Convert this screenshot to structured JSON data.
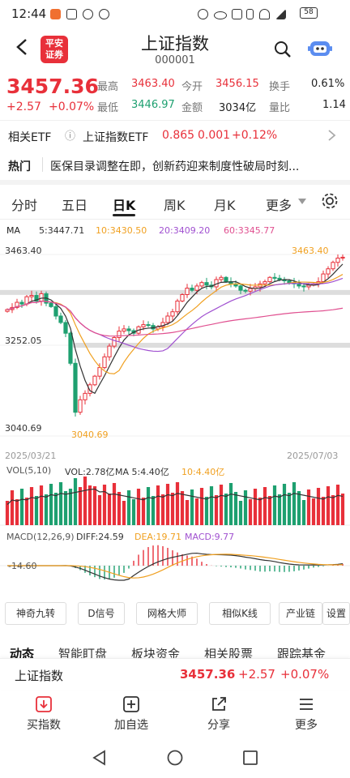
{
  "status_bar": {
    "time": "12:44",
    "battery": "58"
  },
  "header": {
    "title": "上证指数",
    "code": "000001",
    "logo_text": "平安证券"
  },
  "quote": {
    "price": "3457.36",
    "change": "+2.57",
    "change_pct": "+0.07%",
    "high_label": "最高",
    "high": "3463.40",
    "open_label": "今开",
    "open": "3456.15",
    "turnover_label": "换手",
    "turnover": "0.61%",
    "low_label": "最低",
    "low": "3446.97",
    "amount_label": "金额",
    "amount": "3034亿",
    "vol_ratio_label": "量比",
    "vol_ratio": "1.14"
  },
  "etf": {
    "label": "相关ETF",
    "name": "上证指数ETF",
    "price": "0.865",
    "change": "0.001",
    "change_pct": "+0.12%"
  },
  "hot": {
    "label": "热门",
    "text": "医保目录调整在即，创新药迎来制度性破局时刻..."
  },
  "tabs": [
    "分时",
    "五日",
    "日K",
    "周K",
    "月K",
    "更多"
  ],
  "ma_line": {
    "ma_label": "MA",
    "ma5": "5:3447.71",
    "ma10": "10:3430.50",
    "ma20": "20:3409.20",
    "ma60": "60:3345.77"
  },
  "chart_axis": {
    "y_top": "3463.40",
    "y_mid": "3252.05",
    "y_low": "3040.69",
    "low_annotation": "3040.69",
    "high_annotation": "3463.40",
    "date_start": "2025/03/21",
    "date_end": "2025/07/03"
  },
  "vol_line": {
    "label": "VOL(5,10)",
    "vol": "VOL:2.78亿",
    "ma5": "MA 5:4.40亿",
    "ma10": "10:4.40亿"
  },
  "macd_line": {
    "label": "MACD(12,26,9)",
    "diff": "DIFF:24.59",
    "dea": "DEA:19.71",
    "macd": "MACD:9.77",
    "axis_low": "-14.60"
  },
  "chips": [
    "神奇九转",
    "D信号",
    "网格大师",
    "相似K线",
    "产业链",
    "设置"
  ],
  "bottom_tabs": [
    "动态",
    "智能盯盘",
    "板块资金",
    "相关股票",
    "跟踪基金"
  ],
  "bottom_quote": {
    "name": "上证指数",
    "price": "3457.36",
    "change": "+2.57",
    "change_pct": "+0.07%"
  },
  "actions": [
    "买指数",
    "加自选",
    "分享",
    "更多"
  ],
  "colors": {
    "up": "#e8303a",
    "down": "#1ea070",
    "ma5": "#333333",
    "ma10": "#f0a020",
    "ma20": "#a050d0",
    "ma60": "#e05090"
  },
  "chart_data": {
    "type": "candlestick",
    "ylim": [
      3040.69,
      3463.4
    ],
    "high": 3463.4,
    "low": 3040.69,
    "close_series": [
      3335,
      3340,
      3352,
      3348,
      3365,
      3368,
      3355,
      3372,
      3350,
      3342,
      3320,
      3305,
      3280,
      3210,
      3096,
      3125,
      3140,
      3160,
      3180,
      3200,
      3225,
      3250,
      3270,
      3285,
      3290,
      3286,
      3280,
      3295,
      3300,
      3298,
      3290,
      3295,
      3305,
      3320,
      3330,
      3355,
      3370,
      3385,
      3380,
      3390,
      3398,
      3392,
      3388,
      3405,
      3410,
      3400,
      3395,
      3390,
      3380,
      3378,
      3384,
      3388,
      3395,
      3400,
      3410,
      3408,
      3405,
      3402,
      3398,
      3395,
      3390,
      3388,
      3392,
      3395,
      3400,
      3418,
      3430,
      3445,
      3455,
      3457
    ]
  }
}
